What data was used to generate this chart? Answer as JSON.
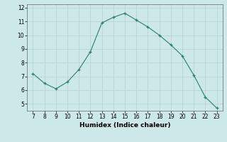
{
  "x": [
    7,
    8,
    9,
    10,
    11,
    12,
    13,
    14,
    15,
    16,
    17,
    18,
    19,
    20,
    21,
    22,
    23
  ],
  "y": [
    7.2,
    6.5,
    6.1,
    6.6,
    7.5,
    8.8,
    10.9,
    11.3,
    11.6,
    11.1,
    10.6,
    10.0,
    9.3,
    8.5,
    7.1,
    5.5,
    4.7
  ],
  "xlabel": "Humidex (Indice chaleur)",
  "ylim": [
    4.5,
    12.25
  ],
  "xlim": [
    6.5,
    23.5
  ],
  "yticks": [
    5,
    6,
    7,
    8,
    9,
    10,
    11,
    12
  ],
  "xticks": [
    7,
    8,
    9,
    10,
    11,
    12,
    13,
    14,
    15,
    16,
    17,
    18,
    19,
    20,
    21,
    22,
    23
  ],
  "line_color": "#2e7d6e",
  "bg_color": "#cce8e8",
  "grid_color": "#b8d4d4",
  "marker": "+"
}
